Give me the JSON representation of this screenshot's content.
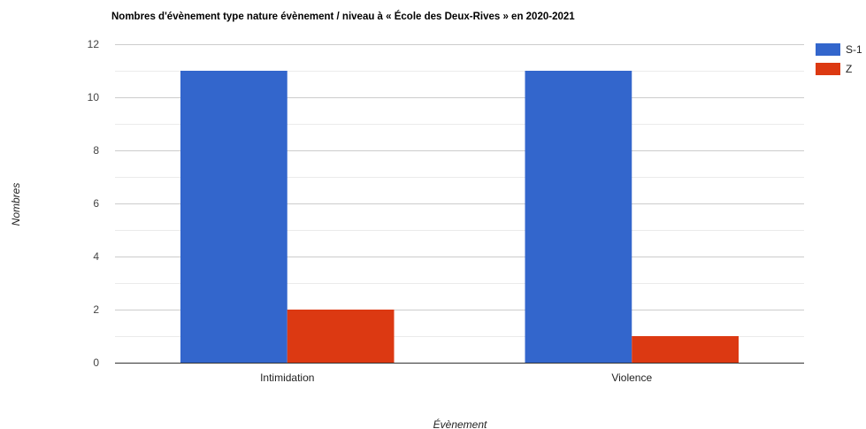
{
  "chart_data": {
    "type": "bar",
    "title": "Nombres d'évènement type nature évènement / niveau à « École des Deux-Rives » en 2020-2021",
    "xlabel": "Évènement",
    "ylabel": "Nombres",
    "categories": [
      "Intimidation",
      "Violence"
    ],
    "series": [
      {
        "name": "S-1",
        "values": [
          11,
          11
        ],
        "color": "#3366cc"
      },
      {
        "name": "Z",
        "values": [
          2,
          1
        ],
        "color": "#dc3912"
      }
    ],
    "ylim": [
      0,
      12
    ],
    "yticks": [
      "0",
      "2",
      "4",
      "6",
      "8",
      "10",
      "12"
    ],
    "grid": true,
    "legend_position": "right"
  }
}
